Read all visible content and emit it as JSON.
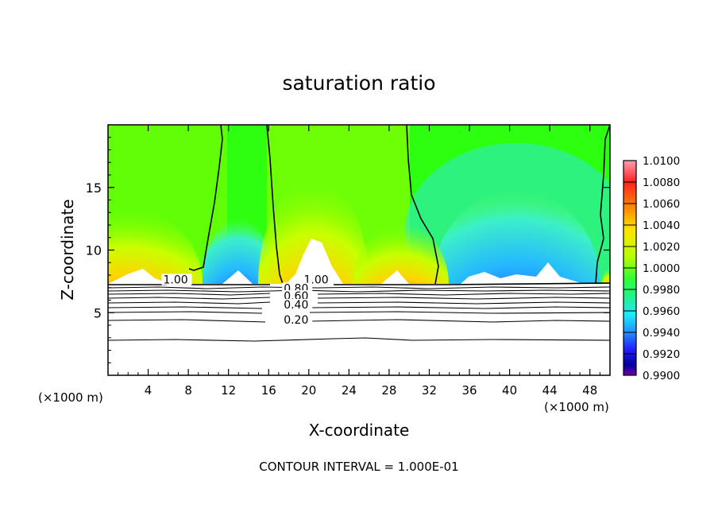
{
  "chart_data": {
    "type": "heatmap",
    "title": "saturation ratio",
    "xlabel": "X-coordinate",
    "ylabel": "Z-coordinate",
    "x_unit_left": "(×1000 m)",
    "x_unit_right": "(×1000 m)",
    "xlim": [
      0,
      50
    ],
    "ylim": [
      0,
      20
    ],
    "x_ticks": [
      4,
      8,
      12,
      16,
      20,
      24,
      28,
      32,
      36,
      40,
      44,
      48
    ],
    "x_tick_labels": [
      "4",
      "8",
      "12",
      "16",
      "20",
      "24",
      "28",
      "32",
      "36",
      "40",
      "44",
      "48"
    ],
    "y_ticks": [
      5,
      10,
      15
    ],
    "y_tick_labels": [
      "5",
      "10",
      "15"
    ],
    "colorbar": {
      "min": 0.99,
      "max": 1.01,
      "labels": [
        "1.0100",
        "1.0080",
        "1.0060",
        "1.0040",
        "1.0020",
        "1.0000",
        "0.9980",
        "0.9960",
        "0.9940",
        "0.9920",
        "0.9900"
      ]
    },
    "cloud_base_z": 7.3,
    "contour_lines": [
      {
        "level": "1.00",
        "label_x": 5.5,
        "label_z": 7.4
      },
      {
        "level": "1.00",
        "label_x": 19.5,
        "label_z": 7.4
      },
      {
        "level": "0.80",
        "label_x": 17.5,
        "label_z": 6.7
      },
      {
        "level": "0.60",
        "label_x": 17.5,
        "label_z": 6.1
      },
      {
        "level": "0.40",
        "label_x": 17.5,
        "label_z": 5.4
      },
      {
        "level": "0.20",
        "label_x": 17.5,
        "label_z": 4.2
      }
    ],
    "annotation": "CONTOUR INTERVAL = 1.000E-01"
  }
}
